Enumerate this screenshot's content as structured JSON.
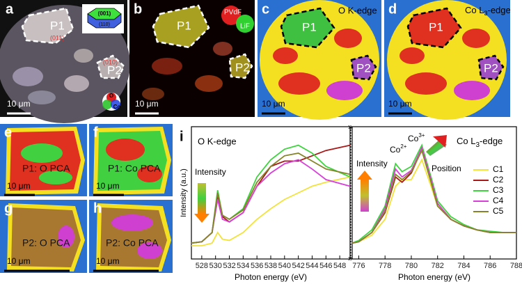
{
  "panels": {
    "a": {
      "letter": "a",
      "p1": "P1",
      "p2": "P2",
      "facet_top": "(001)",
      "facet_side": "(110)",
      "facet_p1": "(011)",
      "facet_p2": "(010)",
      "wheel_o": "O",
      "wheel_co": "Co",
      "scale": "10 μm"
    },
    "b": {
      "letter": "b",
      "p1": "P1",
      "p2": "P2",
      "pvdf": "PVdF",
      "lif": "LiF",
      "scale": "10 μm"
    },
    "c": {
      "letter": "c",
      "p1": "P1",
      "p2": "P2",
      "edge": "O K-edge",
      "scale": "10 μm"
    },
    "d": {
      "letter": "d",
      "p1": "P1",
      "p2": "P2",
      "edge_base": "Co L",
      "edge_sub": "3",
      "edge_rest": "-edge",
      "scale": "10 μm"
    },
    "e": {
      "letter": "e",
      "label": "P1: O PCA",
      "scale": "10 μm"
    },
    "f": {
      "letter": "f",
      "label": "P1: Co PCA",
      "scale": "10 μm"
    },
    "g": {
      "letter": "g",
      "label": "P2: O PCA",
      "scale": "10 μm"
    },
    "h": {
      "letter": "h",
      "label": "P2: Co PCA",
      "scale": "10 μm"
    }
  },
  "chart_data": [
    {
      "type": "line",
      "label": "i",
      "annotation": "O K-edge",
      "arrow_label": "Intensity",
      "ylabel": "Intensity (a.u.)",
      "xlabel": "Photon energy (eV)",
      "x": [
        526.5,
        528,
        529.5,
        530.3,
        531,
        532,
        534,
        536,
        538,
        540,
        542,
        544,
        546,
        549.5
      ],
      "xlim": [
        526.5,
        549.5
      ],
      "xticks": [
        528,
        530,
        532,
        534,
        536,
        538,
        540,
        542,
        544,
        546,
        548
      ],
      "ylim": [
        0,
        1
      ],
      "series": [
        {
          "name": "C1",
          "color": "#f2e23a",
          "values": [
            0.1,
            0.1,
            0.12,
            0.2,
            0.15,
            0.14,
            0.2,
            0.3,
            0.38,
            0.45,
            0.5,
            0.55,
            0.58,
            0.62
          ]
        },
        {
          "name": "C2",
          "color": "#a81818",
          "values": [
            0.12,
            0.13,
            0.2,
            0.48,
            0.32,
            0.28,
            0.35,
            0.55,
            0.7,
            0.74,
            0.74,
            0.78,
            0.82,
            0.86
          ]
        },
        {
          "name": "C3",
          "color": "#3ed43e",
          "values": [
            0.12,
            0.13,
            0.2,
            0.52,
            0.33,
            0.3,
            0.38,
            0.62,
            0.75,
            0.83,
            0.86,
            0.8,
            0.7,
            0.62
          ]
        },
        {
          "name": "C4",
          "color": "#d83fd8",
          "values": [
            0.12,
            0.13,
            0.2,
            0.45,
            0.3,
            0.28,
            0.35,
            0.55,
            0.65,
            0.72,
            0.75,
            0.68,
            0.6,
            0.55
          ]
        },
        {
          "name": "C5",
          "color": "#86842a",
          "values": [
            0.12,
            0.13,
            0.2,
            0.5,
            0.33,
            0.3,
            0.37,
            0.58,
            0.7,
            0.78,
            0.8,
            0.74,
            0.68,
            0.64
          ]
        }
      ]
    },
    {
      "type": "line",
      "annotation_base": "Co L",
      "annotation_sub": "3",
      "annotation_rest": "-edge",
      "co2": "Co",
      "co2_sup": "2+",
      "co3": "Co",
      "co3_sup": "3+",
      "arrow_label": "Intensity",
      "position_label": "Position",
      "xlabel": "Photon energy (eV)",
      "legend": "right",
      "x": [
        775.5,
        776,
        777,
        778,
        778.8,
        779.3,
        780,
        780.8,
        781.5,
        782,
        783,
        784,
        785,
        786,
        787,
        788
      ],
      "xlim": [
        775.5,
        788
      ],
      "xticks": [
        776,
        778,
        780,
        782,
        784,
        786,
        788
      ],
      "ylim": [
        0,
        1
      ],
      "series": [
        {
          "name": "C1",
          "color": "#f2e23a",
          "values": [
            0.12,
            0.13,
            0.18,
            0.3,
            0.55,
            0.6,
            0.6,
            0.75,
            0.55,
            0.4,
            0.3,
            0.25,
            0.22,
            0.2,
            0.2,
            0.2
          ]
        },
        {
          "name": "C2",
          "color": "#a81818",
          "values": [
            0.12,
            0.13,
            0.2,
            0.35,
            0.62,
            0.58,
            0.65,
            0.83,
            0.6,
            0.42,
            0.3,
            0.25,
            0.22,
            0.2,
            0.2,
            0.2
          ]
        },
        {
          "name": "C3",
          "color": "#3ed43e",
          "values": [
            0.12,
            0.14,
            0.22,
            0.4,
            0.72,
            0.66,
            0.7,
            0.86,
            0.62,
            0.44,
            0.32,
            0.26,
            0.22,
            0.21,
            0.2,
            0.2
          ]
        },
        {
          "name": "C4",
          "color": "#d83fd8",
          "values": [
            0.12,
            0.13,
            0.2,
            0.38,
            0.68,
            0.62,
            0.67,
            0.84,
            0.6,
            0.42,
            0.3,
            0.25,
            0.22,
            0.2,
            0.2,
            0.2
          ]
        },
        {
          "name": "C5",
          "color": "#86842a",
          "values": [
            0.12,
            0.13,
            0.2,
            0.36,
            0.64,
            0.6,
            0.66,
            0.82,
            0.58,
            0.4,
            0.3,
            0.25,
            0.22,
            0.2,
            0.2,
            0.2
          ]
        }
      ]
    }
  ]
}
